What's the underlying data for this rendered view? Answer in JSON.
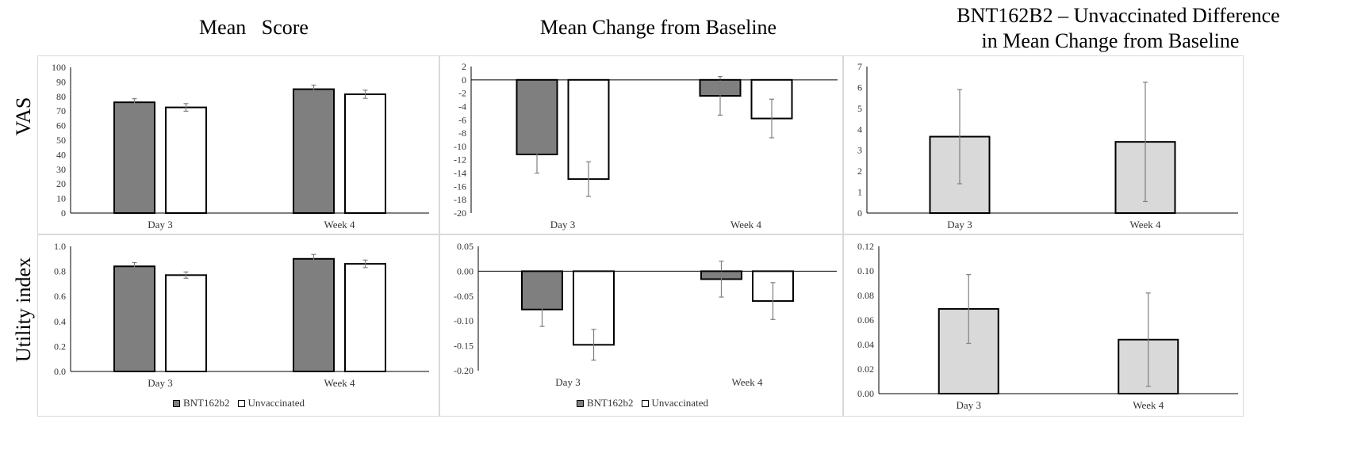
{
  "column_titles": [
    "Mean   Score",
    "Mean Change from Baseline",
    "BNT162B2 – Unvaccinated Difference",
    "in Mean Change from Baseline"
  ],
  "row_labels": [
    "VAS",
    "Utility index"
  ],
  "legend": {
    "series1": "BNT162b2",
    "series2": "Unvaccinated"
  },
  "colors": {
    "bnt": "#7f7f7f",
    "unvacc": "#ffffff",
    "diff": "#d9d9d9",
    "error": "#7f7f7f"
  },
  "chart_data": [
    {
      "id": "vas-mean",
      "type": "bar",
      "categories": [
        "Day 3",
        "Week 4"
      ],
      "series": [
        {
          "name": "BNT162b2",
          "values": [
            76,
            85
          ],
          "err": [
            2.5,
            2.8
          ]
        },
        {
          "name": "Unvaccinated",
          "values": [
            72.5,
            81.5
          ],
          "err": [
            2.6,
            2.8
          ]
        }
      ],
      "ylim": [
        0,
        100
      ],
      "ticks": [
        0,
        10,
        20,
        30,
        40,
        50,
        60,
        70,
        80,
        90,
        100
      ],
      "tick_labels": [
        "0",
        "10",
        "20",
        "30",
        "40",
        "50",
        "60",
        "70",
        "80",
        "90",
        "100"
      ]
    },
    {
      "id": "vas-change",
      "type": "bar",
      "categories": [
        "Day 3",
        "Week 4"
      ],
      "series": [
        {
          "name": "BNT162b2",
          "values": [
            -11.2,
            -2.4
          ],
          "err": [
            2.8,
            2.9
          ]
        },
        {
          "name": "Unvaccinated",
          "values": [
            -14.9,
            -5.8
          ],
          "err": [
            2.6,
            2.9
          ]
        }
      ],
      "ylim": [
        -20,
        2
      ],
      "ticks": [
        2,
        0,
        -2,
        -4,
        -6,
        -8,
        -10,
        -12,
        -14,
        -16,
        -18,
        -20
      ],
      "tick_labels": [
        "2",
        "0",
        "-2",
        "-4",
        "-6",
        "-8",
        "-10",
        "-12",
        "-14",
        "-16",
        "-18",
        "-20"
      ]
    },
    {
      "id": "vas-diff",
      "type": "bar",
      "categories": [
        "Day 3",
        "Week 4"
      ],
      "series": [
        {
          "name": "",
          "values": [
            3.65,
            3.4
          ],
          "err": [
            2.25,
            2.85
          ]
        }
      ],
      "ylim": [
        0,
        7
      ],
      "ticks": [
        0,
        1,
        2,
        3,
        4,
        5,
        6,
        7
      ],
      "tick_labels": [
        "0",
        "1",
        "2",
        "3",
        "4",
        "5",
        "6",
        "7"
      ]
    },
    {
      "id": "util-mean",
      "type": "bar",
      "categories": [
        "Day 3",
        "Week 4"
      ],
      "series": [
        {
          "name": "BNT162b2",
          "values": [
            0.84,
            0.9
          ],
          "err": [
            0.03,
            0.035
          ]
        },
        {
          "name": "Unvaccinated",
          "values": [
            0.77,
            0.86
          ],
          "err": [
            0.025,
            0.03
          ]
        }
      ],
      "ylim": [
        0,
        1.0
      ],
      "ticks": [
        0,
        0.2,
        0.4,
        0.6,
        0.8,
        1.0
      ],
      "tick_labels": [
        "0.0",
        "0.2",
        "0.4",
        "0.6",
        "0.8",
        "1.0"
      ]
    },
    {
      "id": "util-change",
      "type": "bar",
      "categories": [
        "Day 3",
        "Week 4"
      ],
      "series": [
        {
          "name": "BNT162b2",
          "values": [
            -0.077,
            -0.016
          ],
          "err": [
            0.034,
            0.036
          ]
        },
        {
          "name": "Unvaccinated",
          "values": [
            -0.148,
            -0.06
          ],
          "err": [
            0.031,
            0.037
          ]
        }
      ],
      "ylim": [
        -0.2,
        0.05
      ],
      "ticks": [
        0.05,
        0,
        -0.05,
        -0.1,
        -0.15,
        -0.2
      ],
      "tick_labels": [
        "0.05",
        "0.00",
        "-0.05",
        "-0.10",
        "-0.15",
        "-0.20"
      ]
    },
    {
      "id": "util-diff",
      "type": "bar",
      "categories": [
        "Day 3",
        "Week 4"
      ],
      "series": [
        {
          "name": "",
          "values": [
            0.069,
            0.044
          ],
          "err": [
            0.028,
            0.038
          ]
        }
      ],
      "ylim": [
        0,
        0.12
      ],
      "ticks": [
        0,
        0.02,
        0.04,
        0.06,
        0.08,
        0.1,
        0.12
      ],
      "tick_labels": [
        "0.00",
        "0.02",
        "0.04",
        "0.06",
        "0.08",
        "0.10",
        "0.12"
      ]
    }
  ]
}
